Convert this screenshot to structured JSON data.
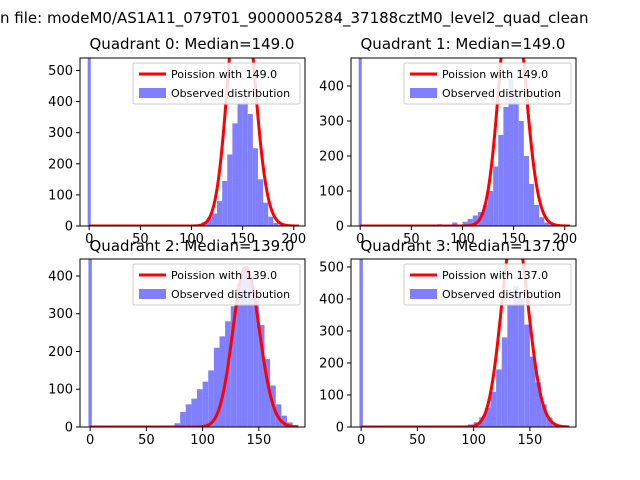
{
  "figure": {
    "suptitle": "n file: modeM0/AS1A11_079T01_9000005284_37188cztM0_level2_quad_clean"
  },
  "chart_data": [
    {
      "type": "bar",
      "title": "Quadrant 0: Median=149.0",
      "median": 149.0,
      "xlim": [
        -9,
        211
      ],
      "ylim": [
        0,
        540
      ],
      "xticks": [
        0,
        50,
        100,
        150,
        200
      ],
      "yticks": [
        0,
        100,
        200,
        300,
        400,
        500
      ],
      "legend": {
        "placement": "upper right",
        "fit_label": "Poission with 149.0",
        "hist_label": "Observed distribution"
      },
      "poisson_mean": 149.0,
      "poisson_scale": 26000,
      "spike": {
        "x": 0,
        "height": 540
      },
      "bins": [
        {
          "x": 100,
          "y": 3
        },
        {
          "x": 105,
          "y": 5
        },
        {
          "x": 110,
          "y": 12
        },
        {
          "x": 115,
          "y": 25
        },
        {
          "x": 120,
          "y": 40
        },
        {
          "x": 125,
          "y": 80
        },
        {
          "x": 130,
          "y": 145
        },
        {
          "x": 135,
          "y": 230
        },
        {
          "x": 140,
          "y": 330
        },
        {
          "x": 145,
          "y": 395
        },
        {
          "x": 150,
          "y": 420
        },
        {
          "x": 155,
          "y": 360
        },
        {
          "x": 160,
          "y": 250
        },
        {
          "x": 165,
          "y": 150
        },
        {
          "x": 170,
          "y": 75
        },
        {
          "x": 175,
          "y": 30
        },
        {
          "x": 180,
          "y": 10
        },
        {
          "x": 185,
          "y": 4
        },
        {
          "x": 190,
          "y": 2
        }
      ]
    },
    {
      "type": "bar",
      "title": "Quadrant 1: Median=149.0",
      "median": 149.0,
      "xlim": [
        -9,
        211
      ],
      "ylim": [
        0,
        480
      ],
      "xticks": [
        0,
        50,
        100,
        150,
        200
      ],
      "yticks": [
        0,
        100,
        200,
        300,
        400
      ],
      "legend": {
        "placement": "upper right",
        "fit_label": "Poission with 149.0",
        "hist_label": "Observed distribution"
      },
      "poisson_mean": 149.0,
      "poisson_scale": 22000,
      "spike": {
        "x": 0,
        "height": 480
      },
      "bins": [
        {
          "x": 45,
          "y": 2
        },
        {
          "x": 75,
          "y": 5
        },
        {
          "x": 90,
          "y": 10
        },
        {
          "x": 100,
          "y": 12
        },
        {
          "x": 105,
          "y": 20
        },
        {
          "x": 110,
          "y": 30
        },
        {
          "x": 115,
          "y": 40
        },
        {
          "x": 120,
          "y": 60
        },
        {
          "x": 125,
          "y": 100
        },
        {
          "x": 130,
          "y": 170
        },
        {
          "x": 135,
          "y": 260
        },
        {
          "x": 140,
          "y": 340
        },
        {
          "x": 145,
          "y": 420
        },
        {
          "x": 150,
          "y": 380
        },
        {
          "x": 155,
          "y": 300
        },
        {
          "x": 160,
          "y": 200
        },
        {
          "x": 165,
          "y": 120
        },
        {
          "x": 170,
          "y": 60
        },
        {
          "x": 175,
          "y": 25
        },
        {
          "x": 180,
          "y": 10
        },
        {
          "x": 185,
          "y": 4
        }
      ]
    },
    {
      "type": "bar",
      "title": "Quadrant 2: Median=139.0",
      "median": 139.0,
      "xlim": [
        -9,
        191
      ],
      "ylim": [
        0,
        445
      ],
      "xticks": [
        0,
        50,
        100,
        150
      ],
      "yticks": [
        0,
        100,
        200,
        300,
        400
      ],
      "legend": {
        "placement": "upper right",
        "fit_label": "Poission with 139.0",
        "hist_label": "Observed distribution"
      },
      "poisson_mean": 139.0,
      "poisson_scale": 12500,
      "spike": {
        "x": 0,
        "height": 445
      },
      "bins": [
        {
          "x": 75,
          "y": 10
        },
        {
          "x": 80,
          "y": 40
        },
        {
          "x": 85,
          "y": 60
        },
        {
          "x": 90,
          "y": 75
        },
        {
          "x": 95,
          "y": 100
        },
        {
          "x": 100,
          "y": 120
        },
        {
          "x": 105,
          "y": 150
        },
        {
          "x": 110,
          "y": 210
        },
        {
          "x": 115,
          "y": 240
        },
        {
          "x": 120,
          "y": 280
        },
        {
          "x": 125,
          "y": 320
        },
        {
          "x": 130,
          "y": 380
        },
        {
          "x": 135,
          "y": 420
        },
        {
          "x": 140,
          "y": 400
        },
        {
          "x": 145,
          "y": 340
        },
        {
          "x": 150,
          "y": 270
        },
        {
          "x": 155,
          "y": 180
        },
        {
          "x": 160,
          "y": 110
        },
        {
          "x": 165,
          "y": 60
        },
        {
          "x": 170,
          "y": 30
        },
        {
          "x": 175,
          "y": 12
        },
        {
          "x": 180,
          "y": 4
        }
      ]
    },
    {
      "type": "bar",
      "title": "Quadrant 3: Median=137.0",
      "median": 137.0,
      "xlim": [
        -9,
        191
      ],
      "ylim": [
        0,
        525
      ],
      "xticks": [
        0,
        50,
        100,
        150
      ],
      "yticks": [
        0,
        100,
        200,
        300,
        400,
        500
      ],
      "legend": {
        "placement": "upper right",
        "fit_label": "Poission with 137.0",
        "hist_label": "Observed distribution"
      },
      "poisson_mean": 137.0,
      "poisson_scale": 18500,
      "spike": {
        "x": 0,
        "height": 525
      },
      "bins": [
        {
          "x": 95,
          "y": 8
        },
        {
          "x": 100,
          "y": 15
        },
        {
          "x": 105,
          "y": 30
        },
        {
          "x": 110,
          "y": 60
        },
        {
          "x": 115,
          "y": 110
        },
        {
          "x": 120,
          "y": 180
        },
        {
          "x": 125,
          "y": 280
        },
        {
          "x": 130,
          "y": 380
        },
        {
          "x": 135,
          "y": 440
        },
        {
          "x": 140,
          "y": 400
        },
        {
          "x": 145,
          "y": 320
        },
        {
          "x": 150,
          "y": 220
        },
        {
          "x": 155,
          "y": 140
        },
        {
          "x": 160,
          "y": 70
        },
        {
          "x": 165,
          "y": 30
        },
        {
          "x": 170,
          "y": 10
        },
        {
          "x": 175,
          "y": 4
        }
      ]
    }
  ],
  "style": {
    "hist_color": "#7f7fff",
    "fit_color": "#ff0000",
    "axes_color": "#000000",
    "legend_border": "#cccccc"
  }
}
